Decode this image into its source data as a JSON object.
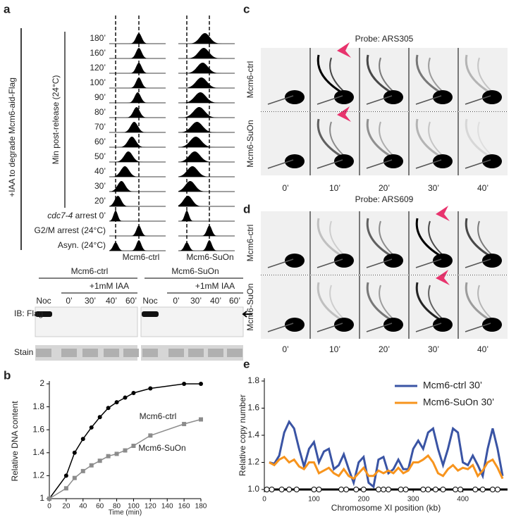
{
  "panel_a": {
    "label": "a",
    "treatment": "+IAA to degrade Mcm6-aid-Flag",
    "time_axis": "Min post-release (24°C)",
    "timepoints": [
      "180’",
      "160’",
      "120’",
      "100’",
      "90’",
      "80’",
      "70’",
      "60’",
      "50’",
      "40’",
      "30’",
      "20’"
    ],
    "cdc7_strain": "cdc7-4",
    "cdc7_condition": " arrest 0’",
    "controls": [
      "G2/M arrest (24°C)",
      "Asyn. (24°C)"
    ],
    "columns": [
      "Mcm6-ctrl",
      "Mcm6-SuOn"
    ],
    "blot": {
      "strains": [
        "Mcm6-ctrl",
        "Mcm6-SuOn"
      ],
      "treatment": "+1mM IAA",
      "lanes": [
        "Noc",
        "0’",
        "30’",
        "40’",
        "60’"
      ],
      "rows": [
        "IB: Flag",
        "Stain"
      ]
    }
  },
  "panel_c": {
    "label": "c",
    "probe": "Probe: ARS305",
    "rows": [
      "Mcm6-ctrl",
      "Mcm6-SuOn"
    ],
    "times": [
      "0’",
      "10’",
      "20’",
      "30’",
      "40’"
    ]
  },
  "panel_d": {
    "label": "d",
    "probe": "Probe: ARS609",
    "rows": [
      "Mcm6-ctrl",
      "Mcm6-SuOn"
    ],
    "times": [
      "0’",
      "10’",
      "20’",
      "30’",
      "40’"
    ]
  },
  "chart_data": [
    {
      "type": "line",
      "label": "b",
      "xlabel": "Time (min)",
      "ylabel": "Relative DNA content",
      "legend": "inline",
      "x": [
        0,
        20,
        30,
        40,
        50,
        60,
        70,
        80,
        90,
        100,
        120,
        160,
        180
      ],
      "series": [
        {
          "name": "Mcm6-ctrl",
          "color": "#000000",
          "marker": "circle",
          "values": [
            1,
            1.2,
            1.4,
            1.52,
            1.62,
            1.71,
            1.79,
            1.84,
            1.88,
            1.92,
            1.96,
            2,
            2
          ]
        },
        {
          "name": "Mcm6-SuOn",
          "color": "#8c8c8c",
          "marker": "square",
          "values": [
            1,
            1.09,
            1.18,
            1.24,
            1.29,
            1.33,
            1.37,
            1.39,
            1.42,
            1.46,
            1.55,
            1.65,
            1.69
          ]
        }
      ],
      "xlim": [
        0,
        180
      ],
      "xticks": [
        0,
        20,
        40,
        60,
        80,
        100,
        120,
        140,
        160,
        180
      ],
      "ylim": [
        1,
        2
      ],
      "yticks": [
        1,
        1.2,
        1.4,
        1.6,
        1.8,
        2
      ]
    },
    {
      "type": "line",
      "label": "e",
      "xlabel": "Chromosome XI position (kb)",
      "ylabel": "Relative copy number",
      "legend": "upper right",
      "x": [
        10,
        20,
        30,
        40,
        50,
        60,
        70,
        80,
        90,
        100,
        110,
        120,
        130,
        140,
        150,
        160,
        170,
        180,
        190,
        200,
        210,
        220,
        230,
        240,
        250,
        260,
        270,
        280,
        290,
        300,
        310,
        320,
        330,
        340,
        350,
        360,
        370,
        380,
        390,
        400,
        410,
        420,
        430,
        440,
        450,
        460,
        470,
        480
      ],
      "series": [
        {
          "name": "Mcm6-ctrl 30’",
          "color": "#3a54a4",
          "values": [
            1.2,
            1.19,
            1.25,
            1.42,
            1.5,
            1.45,
            1.3,
            1.17,
            1.3,
            1.35,
            1.2,
            1.28,
            1.3,
            1.15,
            1.18,
            1.26,
            1.15,
            1.05,
            1.2,
            1.24,
            1.05,
            1.02,
            1.22,
            1.24,
            1.12,
            1.15,
            1.22,
            1.15,
            1.15,
            1.3,
            1.36,
            1.3,
            1.42,
            1.45,
            1.3,
            1.18,
            1.3,
            1.45,
            1.42,
            1.2,
            1.18,
            1.25,
            1.18,
            1.1,
            1.3,
            1.45,
            1.3,
            1.1
          ]
        },
        {
          "name": "Mcm6-SuOn 30’",
          "color": "#f7941d",
          "values": [
            1.2,
            1.18,
            1.22,
            1.24,
            1.2,
            1.22,
            1.17,
            1.15,
            1.2,
            1.2,
            1.12,
            1.14,
            1.16,
            1.12,
            1.1,
            1.15,
            1.1,
            1.08,
            1.12,
            1.16,
            1.1,
            1.1,
            1.14,
            1.12,
            1.14,
            1.12,
            1.16,
            1.12,
            1.14,
            1.2,
            1.2,
            1.22,
            1.25,
            1.2,
            1.12,
            1.1,
            1.15,
            1.18,
            1.14,
            1.16,
            1.15,
            1.18,
            1.1,
            1.14,
            1.2,
            1.22,
            1.16,
            1.08
          ]
        }
      ],
      "markers_x": [
        5,
        15,
        35,
        50,
        65,
        100,
        110,
        155,
        165,
        185,
        200,
        230,
        240,
        250,
        275,
        285,
        320,
        330,
        345,
        360,
        385,
        395,
        425,
        440,
        460,
        470
      ],
      "xlim": [
        0,
        490
      ],
      "xticks": [
        0,
        100,
        200,
        300,
        400
      ],
      "ylim": [
        1,
        1.8
      ],
      "yticks": [
        {
          "value": 1,
          "label": "1.0"
        },
        1.2,
        1.4,
        1.6,
        1.8
      ]
    }
  ]
}
